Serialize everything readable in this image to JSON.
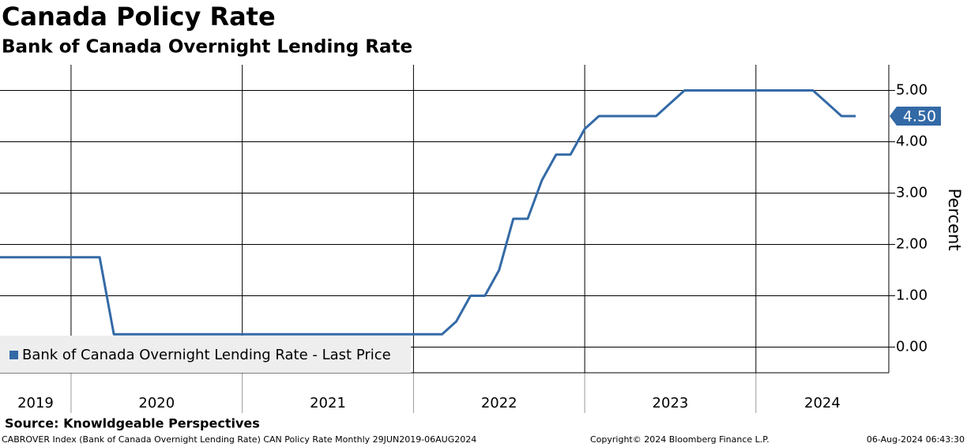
{
  "chart_data": {
    "type": "line",
    "title": "Canada Policy Rate",
    "subtitle": "Bank of Canada Overnight Lending Rate",
    "y_label": "Percent",
    "x": [
      2019.583,
      2019.667,
      2019.75,
      2019.833,
      2019.917,
      2020,
      2020.083,
      2020.167,
      2020.25,
      2020.333,
      2020.417,
      2020.5,
      2020.583,
      2020.667,
      2020.75,
      2020.833,
      2020.917,
      2021,
      2021.083,
      2021.167,
      2021.25,
      2021.333,
      2021.417,
      2021.5,
      2021.583,
      2021.667,
      2021.75,
      2021.833,
      2021.917,
      2022,
      2022.083,
      2022.167,
      2022.25,
      2022.333,
      2022.417,
      2022.5,
      2022.583,
      2022.667,
      2022.75,
      2022.833,
      2022.917,
      2023,
      2023.083,
      2023.167,
      2023.25,
      2023.333,
      2023.417,
      2023.5,
      2023.583,
      2023.667,
      2023.75,
      2023.833,
      2023.917,
      2024,
      2024.083,
      2024.167,
      2024.25,
      2024.333,
      2024.417,
      2024.5,
      2024.583
    ],
    "series": [
      {
        "name": "Bank of Canada Overnight Lending Rate - Last Price",
        "color": "#336aa6",
        "values": [
          1.75,
          1.75,
          1.75,
          1.75,
          1.75,
          1.75,
          1.75,
          1.75,
          0.25,
          0.25,
          0.25,
          0.25,
          0.25,
          0.25,
          0.25,
          0.25,
          0.25,
          0.25,
          0.25,
          0.25,
          0.25,
          0.25,
          0.25,
          0.25,
          0.25,
          0.25,
          0.25,
          0.25,
          0.25,
          0.25,
          0.25,
          0.25,
          0.5,
          1.0,
          1.0,
          1.5,
          2.5,
          2.5,
          3.25,
          3.75,
          3.75,
          4.25,
          4.5,
          4.5,
          4.5,
          4.5,
          4.5,
          4.75,
          5,
          5,
          5,
          5,
          5,
          5,
          5,
          5,
          5,
          5,
          4.75,
          4.5,
          4.5
        ]
      }
    ],
    "last_label": "4.50",
    "xlim": [
      2019.585,
      2024.776
    ],
    "xticks": [
      2019,
      2020,
      2021,
      2022,
      2023,
      2024
    ],
    "ylim": [
      -0.5,
      5.5
    ],
    "yticks": [
      {
        "value": 0,
        "label": "0.00"
      },
      {
        "value": 1,
        "label": "1.00"
      },
      {
        "value": 2,
        "label": "2.00"
      },
      {
        "value": 3,
        "label": "3.00"
      },
      {
        "value": 4,
        "label": "4.00"
      },
      {
        "value": 5,
        "label": "5.00"
      }
    ],
    "grid": true,
    "source": "Source: Knowldgeable Perspectives",
    "footer_left": "CABROVER Index (Bank of Canada Overnight Lending Rate) CAN Policy Rate  Monthly 29JUN2019-06AUG2024",
    "footer_center": "Copyright© 2024 Bloomberg Finance L.P.",
    "footer_right": "06-Aug-2024 06:43:30"
  }
}
